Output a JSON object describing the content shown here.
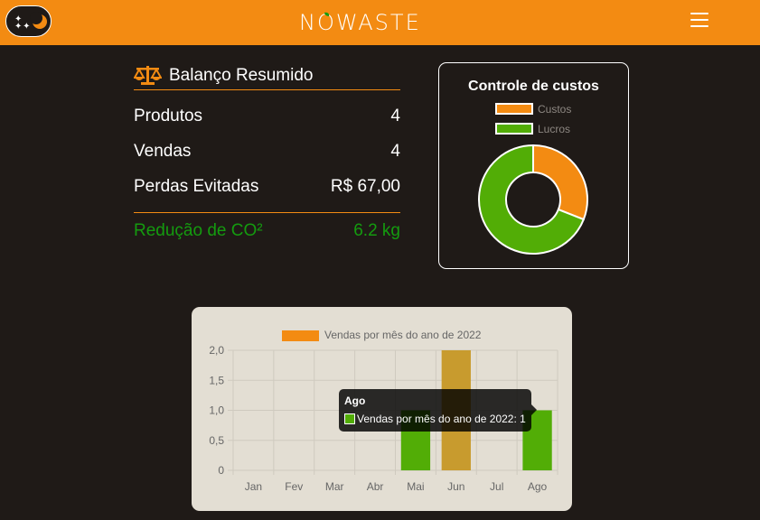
{
  "header": {
    "logo_text": "NOWASTE",
    "theme_toggle_label": "dark-mode",
    "menu_icon": "hamburger-icon"
  },
  "summary": {
    "title": "Balanço Resumido",
    "rows": [
      {
        "label": "Produtos",
        "value": "4"
      },
      {
        "label": "Vendas",
        "value": "4"
      },
      {
        "label": "Perdas Evitadas",
        "value": "R$ 67,00"
      }
    ],
    "co2": {
      "label": "Redução de CO²",
      "value": "6.2 kg"
    }
  },
  "cost_control": {
    "title": "Controle de custos",
    "legend": [
      {
        "label": "Custos",
        "color": "#f38b12"
      },
      {
        "label": "Lucros",
        "color": "#52ad06"
      }
    ]
  },
  "colors": {
    "accent": "#f38b12",
    "green": "#52ad06",
    "background": "#1f1a17",
    "highlight_bar": "#c89b2e"
  },
  "chart_data": [
    {
      "type": "pie",
      "title": "Controle de custos",
      "categories": [
        "Custos",
        "Lucros"
      ],
      "values": [
        31,
        69
      ]
    },
    {
      "type": "bar",
      "title": "",
      "legend": "Vendas por mês do ano de 2022",
      "categories": [
        "Jan",
        "Fev",
        "Mar",
        "Abr",
        "Mai",
        "Jun",
        "Jul",
        "Ago"
      ],
      "values": [
        0,
        0,
        0,
        0,
        1,
        2,
        0,
        1
      ],
      "ylim": [
        0,
        2
      ],
      "yticks": [
        "0",
        "0,5",
        "1,0",
        "1,5",
        "2,0"
      ],
      "xlabel": "",
      "ylabel": "",
      "highlighted": "Jun",
      "tooltip": {
        "title": "Ago",
        "body": "Vendas por mês do ano de 2022: 1"
      }
    }
  ]
}
